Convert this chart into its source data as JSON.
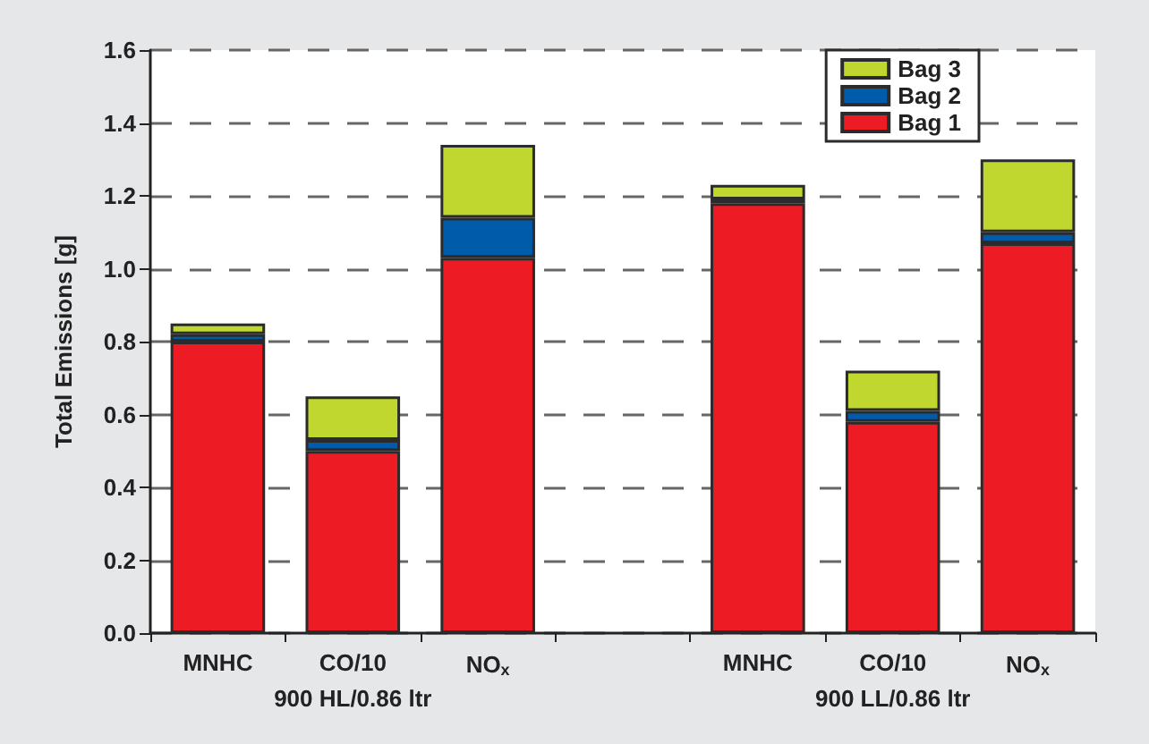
{
  "chart_data": {
    "type": "bar",
    "stacked": true,
    "ylabel": "Total Emissions [g]",
    "categories": [
      "MNHC",
      "CO/10",
      "NO$_{x}$",
      null,
      "MNHC",
      "CO/10",
      "NO$_{x}$"
    ],
    "series": [
      {
        "name": "Bag 1",
        "color": "#ed1c24",
        "values": [
          0.8,
          0.5,
          1.03,
          null,
          1.18,
          0.58,
          1.07
        ]
      },
      {
        "name": "Bag 2",
        "color": "#005bab",
        "values": [
          0.02,
          0.03,
          0.11,
          null,
          0.01,
          0.03,
          0.03
        ]
      },
      {
        "name": "Bag 3",
        "color": "#c0d730",
        "values": [
          0.03,
          0.12,
          0.2,
          null,
          0.04,
          0.11,
          0.2
        ]
      }
    ],
    "annotations": [
      "900 HL/0.86 ltr",
      "900 LL/0.86 ltr"
    ],
    "ylim": [
      0,
      1.6
    ],
    "yticks": [
      {
        "value": 0,
        "label": "0.0"
      },
      0.2,
      0.4,
      0.6,
      0.8,
      {
        "value": 1,
        "label": "1.0"
      },
      1.2,
      1.4,
      1.6
    ],
    "grid": "y",
    "legend": "top right"
  }
}
